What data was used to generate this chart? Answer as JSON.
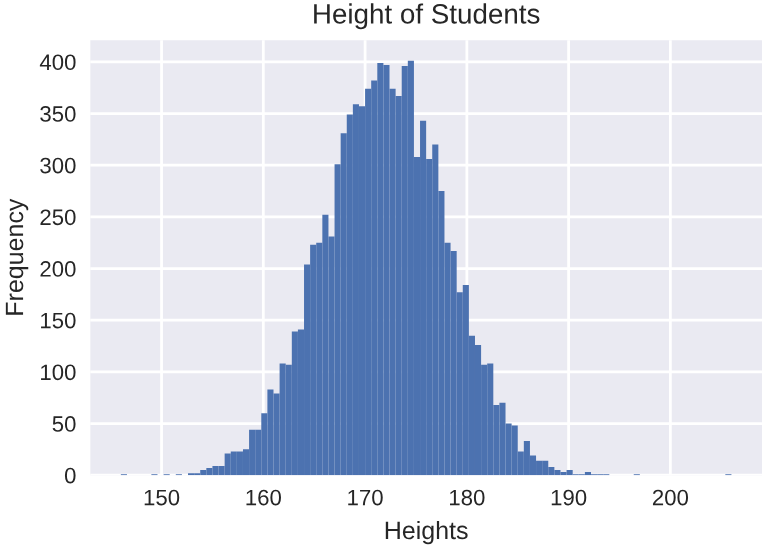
{
  "chart_data": {
    "type": "histogram",
    "title": "Height of Students",
    "xlabel": "Heights",
    "ylabel": "Frequency",
    "bins": [
      146.0,
      146.6,
      147.2,
      147.8,
      148.4,
      149.0,
      149.6,
      150.2,
      150.8,
      151.4,
      152.0,
      152.6,
      153.2,
      153.8,
      154.4,
      155.0,
      155.6,
      156.2,
      156.8,
      157.4,
      158.0,
      158.6,
      159.2,
      159.8,
      160.4,
      161.0,
      161.6,
      162.2,
      162.8,
      163.4,
      164.0,
      164.6,
      165.2,
      165.8,
      166.4,
      167.0,
      167.6,
      168.2,
      168.8,
      169.4,
      170.0,
      170.6,
      171.2,
      171.8,
      172.4,
      173.0,
      173.6,
      174.2,
      174.8,
      175.4,
      176.0,
      176.6,
      177.2,
      177.8,
      178.4,
      179.0,
      179.6,
      180.2,
      180.8,
      181.4,
      182.0,
      182.6,
      183.2,
      183.8,
      184.4,
      185.0,
      185.6,
      186.2,
      186.8,
      187.4,
      188.0,
      188.6,
      189.2,
      189.8,
      190.4,
      191.0,
      191.6,
      192.2,
      192.8,
      193.4,
      194.0,
      194.6,
      195.2,
      195.8,
      196.4,
      197.0,
      197.6,
      198.2,
      198.8,
      199.4,
      200.0,
      200.6,
      201.2,
      201.8,
      202.4,
      203.0,
      203.6,
      204.2,
      204.8,
      205.4,
      206.0
    ],
    "values": [
      1,
      0,
      0,
      0,
      0,
      1,
      0,
      1,
      0,
      1,
      0,
      2,
      2,
      5,
      7,
      9,
      9,
      21,
      23,
      23,
      25,
      44,
      44,
      60,
      83,
      79,
      108,
      107,
      139,
      141,
      204,
      223,
      225,
      252,
      231,
      301,
      331,
      349,
      359,
      357,
      374,
      382,
      399,
      397,
      374,
      367,
      396,
      401,
      308,
      343,
      306,
      320,
      275,
      225,
      217,
      177,
      184,
      135,
      126,
      107,
      108,
      68,
      70,
      50,
      48,
      23,
      33,
      19,
      14,
      14,
      8,
      5,
      3,
      5,
      1,
      1,
      3,
      1,
      1,
      1,
      0,
      0,
      0,
      0,
      1,
      0,
      0,
      0,
      0,
      0,
      0,
      0,
      0,
      0,
      0,
      0,
      0,
      0,
      0,
      1
    ],
    "color": "#4c72b0",
    "xlim": [
      143,
      209
    ],
    "xticks": [
      150,
      160,
      170,
      180,
      190,
      200
    ],
    "ylim": [
      0,
      421
    ],
    "yticks": [
      0,
      50,
      100,
      150,
      200,
      250,
      300,
      350,
      400
    ],
    "grid": true
  }
}
